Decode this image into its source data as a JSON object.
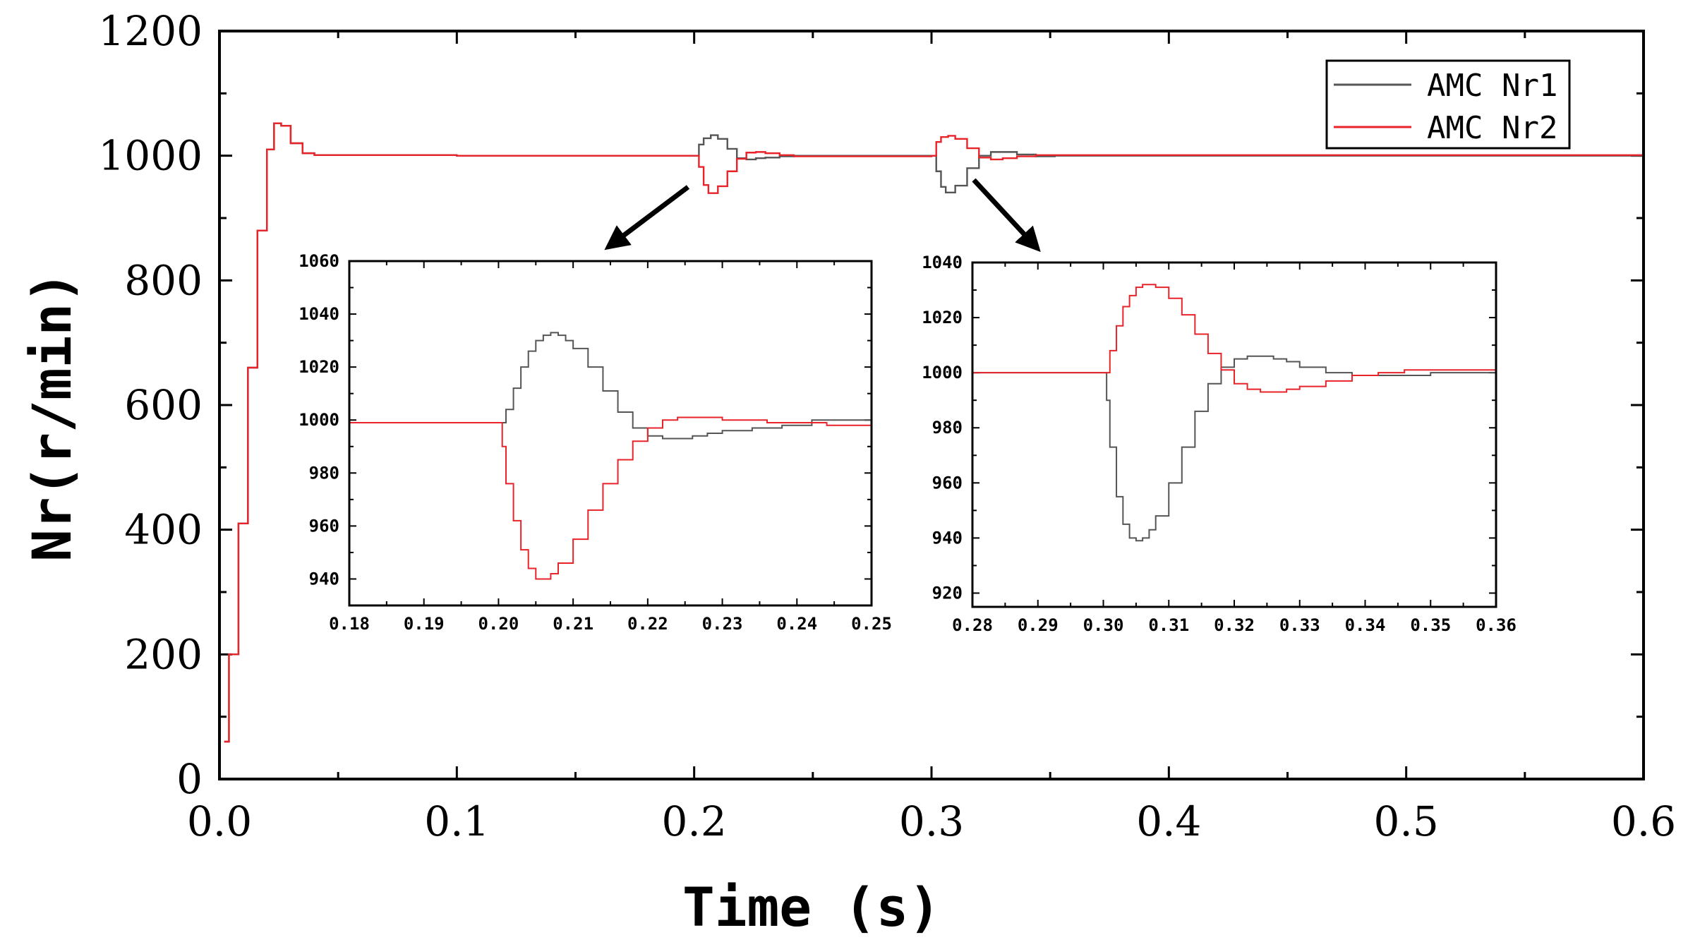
{
  "chart_data": [
    {
      "type": "line",
      "xlabel": "Time (s)",
      "ylabel": "Nr(r/min)",
      "xlim": [
        0.0,
        0.6
      ],
      "ylim": [
        0,
        1200
      ],
      "xticks": [
        "0.0",
        "0.1",
        "0.2",
        "0.3",
        "0.4",
        "0.5",
        "0.6"
      ],
      "yticks": [
        "0",
        "200",
        "400",
        "600",
        "800",
        "1000",
        "1200"
      ],
      "legend": {
        "position": "top-right",
        "entries": [
          "AMC Nr1",
          "AMC Nr2"
        ]
      },
      "series": [
        {
          "name": "AMC Nr1",
          "color": "#555555",
          "x": [
            0.002,
            0.004,
            0.008,
            0.012,
            0.016,
            0.02,
            0.023,
            0.026,
            0.03,
            0.035,
            0.04,
            0.1,
            0.2,
            0.202,
            0.204,
            0.207,
            0.21,
            0.214,
            0.218,
            0.222,
            0.226,
            0.23,
            0.236,
            0.242,
            0.25,
            0.3,
            0.302,
            0.304,
            0.306,
            0.31,
            0.315,
            0.32,
            0.325,
            0.33,
            0.336,
            0.344,
            0.352,
            0.6
          ],
          "y": [
            60,
            200,
            410,
            660,
            880,
            1010,
            1052,
            1048,
            1020,
            1004,
            1001,
            1000,
            1000,
            1018,
            1028,
            1033,
            1027,
            1011,
            996,
            994,
            996,
            997,
            999,
            1000,
            1000,
            1000,
            975,
            950,
            941,
            952,
            980,
            1000,
            1006,
            1006,
            1002,
            999,
            1000,
            1000
          ]
        },
        {
          "name": "AMC Nr2",
          "color": "#e8232a",
          "x": [
            0.002,
            0.004,
            0.008,
            0.012,
            0.016,
            0.02,
            0.023,
            0.026,
            0.03,
            0.035,
            0.04,
            0.1,
            0.2,
            0.202,
            0.204,
            0.206,
            0.21,
            0.214,
            0.218,
            0.222,
            0.226,
            0.23,
            0.236,
            0.242,
            0.25,
            0.3,
            0.302,
            0.304,
            0.307,
            0.31,
            0.315,
            0.32,
            0.325,
            0.33,
            0.336,
            0.344,
            0.352,
            0.6
          ],
          "y": [
            60,
            200,
            410,
            660,
            880,
            1010,
            1052,
            1048,
            1020,
            1004,
            1001,
            1000,
            1000,
            982,
            953,
            940,
            951,
            975,
            995,
            1005,
            1006,
            1004,
            1001,
            999,
            999,
            1000,
            1022,
            1030,
            1032,
            1027,
            1012,
            997,
            994,
            996,
            999,
            1001,
            1001,
            1000
          ]
        }
      ]
    },
    {
      "type": "line",
      "xlim": [
        0.18,
        0.25
      ],
      "ylim": [
        930,
        1060
      ],
      "xticks": [
        "0.18",
        "0.19",
        "0.20",
        "0.21",
        "0.22",
        "0.23",
        "0.24",
        "0.25"
      ],
      "yticks": [
        "940",
        "960",
        "980",
        "1000",
        "1020",
        "1040",
        "1060"
      ],
      "series": [
        {
          "color": "#555555",
          "x": [
            0.18,
            0.2,
            0.201,
            0.202,
            0.203,
            0.204,
            0.205,
            0.206,
            0.207,
            0.208,
            0.209,
            0.21,
            0.212,
            0.214,
            0.216,
            0.218,
            0.22,
            0.222,
            0.224,
            0.226,
            0.228,
            0.23,
            0.234,
            0.238,
            0.242,
            0.246,
            0.25
          ],
          "y": [
            999,
            999,
            1004,
            1012,
            1020,
            1026,
            1030,
            1032,
            1033,
            1032,
            1030,
            1027,
            1020,
            1011,
            1003,
            997,
            994,
            993,
            993,
            994,
            995,
            996,
            997,
            998,
            1000,
            1000,
            1000
          ]
        },
        {
          "color": "#e8232a",
          "x": [
            0.18,
            0.2,
            0.2005,
            0.201,
            0.202,
            0.203,
            0.204,
            0.205,
            0.206,
            0.207,
            0.208,
            0.21,
            0.212,
            0.214,
            0.216,
            0.218,
            0.22,
            0.222,
            0.224,
            0.226,
            0.228,
            0.23,
            0.232,
            0.236,
            0.24,
            0.244,
            0.25
          ],
          "y": [
            999,
            999,
            990,
            976,
            962,
            951,
            944,
            940,
            940,
            942,
            946,
            955,
            966,
            976,
            985,
            992,
            997,
            1000,
            1001,
            1001,
            1001,
            1000,
            1000,
            999,
            999,
            998,
            999
          ]
        }
      ]
    },
    {
      "type": "line",
      "xlim": [
        0.28,
        0.36
      ],
      "ylim": [
        915,
        1040
      ],
      "xticks": [
        "0.28",
        "0.29",
        "0.30",
        "0.31",
        "0.32",
        "0.33",
        "0.34",
        "0.35",
        "0.36"
      ],
      "yticks": [
        "920",
        "940",
        "960",
        "980",
        "1000",
        "1020",
        "1040"
      ],
      "series": [
        {
          "color": "#555555",
          "x": [
            0.28,
            0.3,
            0.3005,
            0.301,
            0.302,
            0.303,
            0.304,
            0.305,
            0.306,
            0.307,
            0.308,
            0.31,
            0.312,
            0.314,
            0.316,
            0.318,
            0.32,
            0.322,
            0.324,
            0.326,
            0.328,
            0.33,
            0.334,
            0.338,
            0.342,
            0.346,
            0.35,
            0.36
          ],
          "y": [
            1000,
            1000,
            990,
            973,
            955,
            945,
            940,
            939,
            940,
            943,
            948,
            960,
            973,
            986,
            996,
            1002,
            1005,
            1006,
            1006,
            1005,
            1004,
            1002,
            1000,
            999,
            999,
            999,
            1000,
            1000
          ]
        },
        {
          "color": "#e8232a",
          "x": [
            0.28,
            0.3,
            0.301,
            0.302,
            0.303,
            0.304,
            0.305,
            0.306,
            0.307,
            0.308,
            0.31,
            0.312,
            0.314,
            0.316,
            0.318,
            0.32,
            0.322,
            0.324,
            0.326,
            0.328,
            0.33,
            0.334,
            0.338,
            0.342,
            0.346,
            0.35,
            0.36
          ],
          "y": [
            1000,
            1000,
            1008,
            1017,
            1024,
            1028,
            1031,
            1032,
            1032,
            1031,
            1027,
            1021,
            1014,
            1007,
            1001,
            996,
            994,
            993,
            993,
            994,
            995,
            997,
            999,
            1000,
            1001,
            1001,
            1000
          ]
        }
      ]
    }
  ]
}
